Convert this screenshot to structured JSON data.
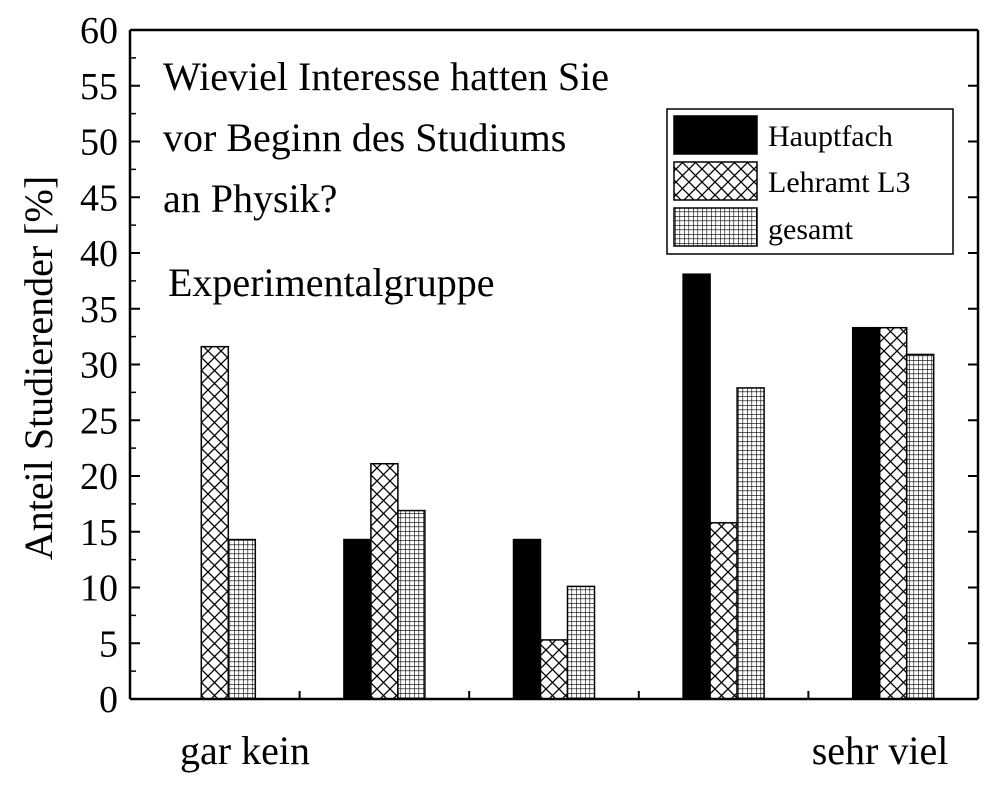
{
  "chart_data": {
    "type": "bar",
    "title": "Wieviel Interesse hatten Sie vor Beginn des Studiums an Physik?",
    "title_lines": [
      "Wieviel Interesse hatten Sie",
      "vor Beginn des Studiums",
      "an Physik?"
    ],
    "subtitle": "Experimentalgruppe",
    "ylabel": "Anteil Studierender [%]",
    "xlabel": "",
    "x_end_labels": {
      "left": "gar kein",
      "right": "sehr viel"
    },
    "categories": [
      "1",
      "2",
      "3",
      "4",
      "5"
    ],
    "ylim": [
      0,
      60
    ],
    "yticks": [
      "0",
      "5",
      "10",
      "15",
      "20",
      "25",
      "30",
      "35",
      "40",
      "45",
      "50",
      "55",
      "60"
    ],
    "grid": false,
    "legend_position": "top-right",
    "series": [
      {
        "name": "Hauptfach",
        "pattern": "solid",
        "values": [
          0,
          14.3,
          14.3,
          38.1,
          33.3
        ]
      },
      {
        "name": "Lehramt L3",
        "pattern": "crosshatch",
        "values": [
          31.6,
          21.1,
          5.3,
          15.8,
          33.3
        ]
      },
      {
        "name": "gesamt",
        "pattern": "grid",
        "values": [
          14.3,
          16.9,
          10.1,
          27.9,
          30.9
        ]
      }
    ],
    "colors": {
      "axis": "#000000",
      "bar_fill": "#000000",
      "background": "#ffffff"
    }
  }
}
